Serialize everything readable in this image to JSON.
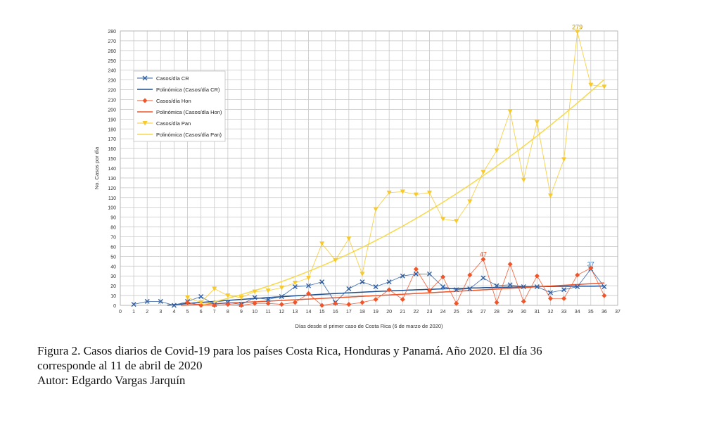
{
  "chart_data": {
    "type": "line",
    "xlabel": "Días desde el primer caso de Costa Rica (6 de marzo de 2020)",
    "ylabel": "No. Casos por día",
    "xlim": [
      0,
      37
    ],
    "ylim": [
      0,
      280
    ],
    "xticks": [
      0,
      1,
      2,
      3,
      4,
      5,
      6,
      7,
      8,
      9,
      10,
      11,
      12,
      13,
      14,
      15,
      16,
      17,
      18,
      19,
      20,
      21,
      22,
      23,
      24,
      25,
      26,
      27,
      28,
      29,
      30,
      31,
      32,
      33,
      34,
      35,
      36,
      37
    ],
    "yticks": [
      0,
      10,
      20,
      30,
      40,
      50,
      60,
      70,
      80,
      90,
      100,
      110,
      120,
      130,
      140,
      150,
      160,
      170,
      180,
      190,
      200,
      210,
      220,
      230,
      240,
      250,
      260,
      270,
      280
    ],
    "grid": true,
    "legend_position": "upper-left",
    "series": [
      {
        "name": "Casos/día CR",
        "color": "#2e5fa3",
        "marker": "x",
        "x": [
          1,
          2,
          3,
          4,
          5,
          6,
          7,
          8,
          9,
          10,
          11,
          12,
          13,
          14,
          15,
          16,
          17,
          18,
          19,
          20,
          21,
          22,
          23,
          24,
          25,
          26,
          27,
          28,
          29,
          30,
          31,
          32,
          33,
          34,
          35,
          36
        ],
        "values": [
          1,
          4,
          4,
          0,
          4,
          9,
          1,
          3,
          1,
          8,
          6,
          9,
          19,
          20,
          24,
          3,
          17,
          24,
          19,
          24,
          30,
          32,
          32,
          19,
          16,
          17,
          28,
          20,
          21,
          19,
          19,
          13,
          16,
          19,
          37,
          19
        ]
      },
      {
        "name": "Polinómica (Casos/día CR)",
        "color": "#1f4e8c",
        "type": "trend",
        "coef": [
          -4.2,
          1.3,
          -0.0177
        ]
      },
      {
        "name": "Casos/día Hon",
        "color": "#f0552a",
        "marker": "diamond",
        "x": [
          5,
          6,
          7,
          8,
          9,
          10,
          11,
          12,
          13,
          14,
          15,
          16,
          17,
          18,
          19,
          20,
          21,
          22,
          23,
          24,
          25,
          26,
          27,
          28,
          29,
          30,
          31,
          32,
          33,
          34,
          35,
          36
        ],
        "values": [
          3,
          0,
          0,
          1,
          0,
          2,
          2,
          1,
          3,
          12,
          0,
          2,
          1,
          3,
          6,
          16,
          6,
          37,
          15,
          29,
          2,
          31,
          47,
          3,
          42,
          4,
          30,
          7,
          7,
          31,
          38,
          10
        ]
      },
      {
        "name": "Polinómica (Casos/día Hon)",
        "color": "#f0552a",
        "type": "trend",
        "coef": [
          -2.8,
          0.62,
          0.0026
        ]
      },
      {
        "name": "Casos/día Pan",
        "color": "#f7c92a",
        "marker": "triangle-down",
        "x": [
          5,
          6,
          7,
          8,
          9,
          10,
          11,
          12,
          13,
          14,
          15,
          16,
          17,
          18,
          19,
          20,
          21,
          22,
          23,
          24,
          25,
          26,
          27,
          28,
          29,
          30,
          31,
          32,
          33,
          34,
          35,
          36
        ],
        "values": [
          8,
          3,
          17,
          10,
          8,
          14,
          15,
          18,
          23,
          28,
          63,
          46,
          68,
          32,
          98,
          115,
          116,
          113,
          115,
          88,
          86,
          106,
          136,
          158,
          198,
          128,
          187,
          112,
          149,
          279,
          225,
          223
        ]
      },
      {
        "name": "Polinómica (Casos/día Pan)",
        "color": "#f7d94a",
        "type": "trend",
        "coef": [
          -12.3,
          1.2,
          0.154
        ]
      }
    ],
    "annotations": [
      {
        "x": 34,
        "y": 279,
        "text": "279",
        "color": "#b8900a"
      },
      {
        "x": 27,
        "y": 47,
        "text": "47",
        "color": "#e8451a"
      },
      {
        "x": 35,
        "y": 37,
        "text": "37",
        "color": "#2e6fb8"
      }
    ]
  },
  "caption": {
    "line1": "Figura 2. Casos diarios de Covid-19 para los países Costa Rica, Honduras y Panamá. Año 2020. El día 36",
    "line2": "corresponde al 11 de abril de 2020",
    "line3": "Autor: Edgardo Vargas Jarquín"
  }
}
